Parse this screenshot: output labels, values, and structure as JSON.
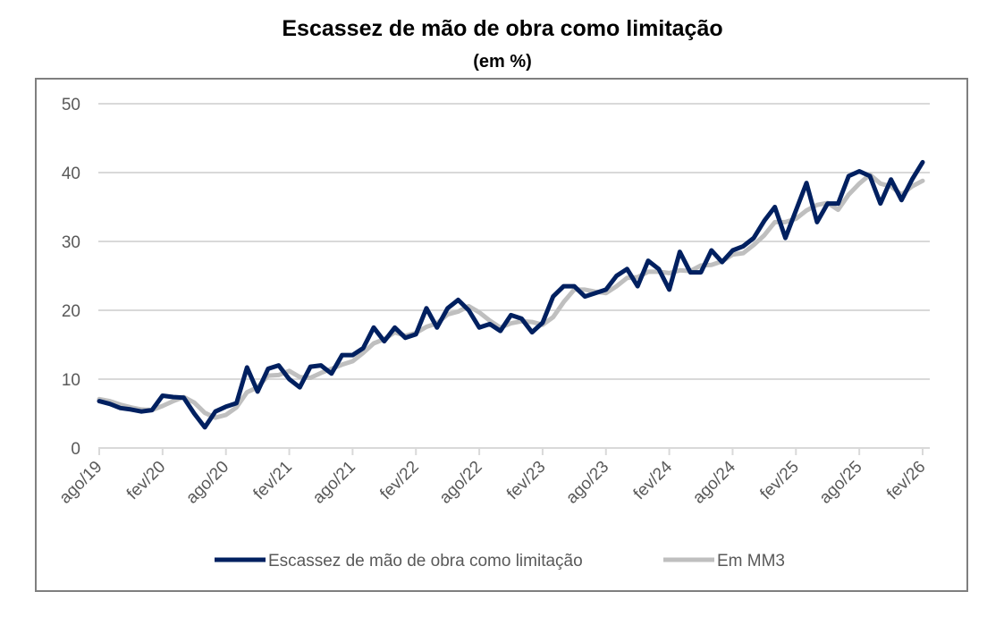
{
  "chart_data": {
    "type": "line",
    "title": "Escassez de mão de obra como limitação",
    "subtitle": "(em %)",
    "xlabel": "",
    "ylabel": "",
    "ylim": [
      0,
      50
    ],
    "yticks": [
      0,
      10,
      20,
      30,
      40,
      50
    ],
    "grid": true,
    "legend_position": "bottom",
    "x_start": "ago/19",
    "x_end": "fev/26",
    "x_tick_labels": [
      "ago/19",
      "fev/20",
      "ago/20",
      "fev/21",
      "ago/21",
      "fev/22",
      "ago/22",
      "fev/23",
      "ago/23",
      "fev/24",
      "ago/24",
      "fev/25",
      "ago/25",
      "fev/26"
    ],
    "series": [
      {
        "name": "Escassez de mão de obra como limitação",
        "color": "#002060",
        "values": [
          6.8,
          6.4,
          5.8,
          5.6,
          5.3,
          5.5,
          7.6,
          7.4,
          7.3,
          5.0,
          3.0,
          5.3,
          6.0,
          6.5,
          11.7,
          8.2,
          11.5,
          12.0,
          10.0,
          8.8,
          11.8,
          12.0,
          10.8,
          13.5,
          13.5,
          14.5,
          17.5,
          15.5,
          17.5,
          16.0,
          16.5,
          20.3,
          17.5,
          20.3,
          21.5,
          20.0,
          17.5,
          18.0,
          17.0,
          19.3,
          18.8,
          16.8,
          18.2,
          22.0,
          23.5,
          23.5,
          22.0,
          22.5,
          23.0,
          25.0,
          26.0,
          23.5,
          27.2,
          26.0,
          23.0,
          28.5,
          25.5,
          25.5,
          28.7,
          27.0,
          28.7,
          29.3,
          30.5,
          33.0,
          35.0,
          30.5,
          34.5,
          38.5,
          32.8,
          35.5,
          35.5,
          39.5,
          40.2,
          39.5,
          35.5,
          39.0,
          36.0,
          39.0,
          41.5
        ]
      },
      {
        "name": "Em MM3",
        "color": "#bfbfbf",
        "values": [
          7.1,
          6.8,
          6.3,
          5.9,
          5.6,
          5.5,
          6.1,
          6.8,
          7.4,
          6.6,
          5.1,
          4.4,
          4.8,
          5.9,
          8.1,
          8.8,
          10.5,
          10.6,
          11.2,
          10.3,
          10.2,
          10.9,
          11.5,
          12.1,
          12.6,
          13.8,
          15.2,
          15.8,
          16.8,
          16.3,
          16.7,
          17.6,
          18.1,
          19.4,
          19.8,
          20.6,
          19.7,
          18.5,
          17.5,
          18.1,
          18.4,
          18.3,
          17.9,
          19.0,
          21.2,
          23.0,
          23.0,
          22.7,
          22.5,
          23.5,
          24.7,
          24.8,
          25.6,
          25.6,
          25.4,
          25.8,
          25.7,
          26.5,
          26.6,
          27.1,
          28.1,
          28.3,
          29.5,
          30.9,
          32.8,
          32.8,
          33.3,
          34.5,
          35.3,
          35.6,
          34.6,
          36.8,
          38.4,
          39.7,
          38.4,
          38.0,
          36.8,
          38.0,
          38.8
        ]
      }
    ]
  }
}
